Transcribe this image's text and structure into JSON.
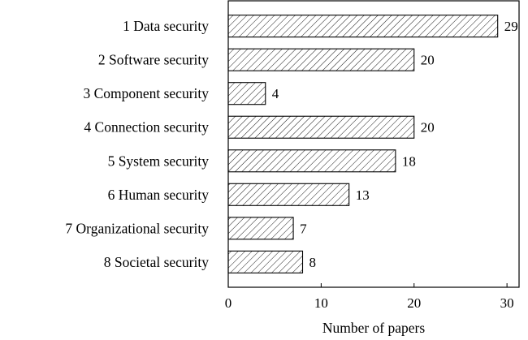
{
  "chart_data": {
    "type": "bar",
    "orientation": "horizontal",
    "categories": [
      "1 Data security",
      "2 Software security",
      "3 Component security",
      "4 Connection security",
      "5 System security",
      "6 Human security",
      "7 Organizational security",
      "8 Societal security"
    ],
    "values": [
      29,
      20,
      4,
      20,
      18,
      13,
      7,
      8
    ],
    "title": "",
    "xlabel": "Number of papers",
    "ylabel": "",
    "xlim": [
      0,
      31.3
    ],
    "xticks": [
      "0",
      "10",
      "20",
      "30"
    ],
    "bar_fill": "hatched",
    "bar_color": "#000000",
    "grid": false,
    "legend": "none"
  }
}
